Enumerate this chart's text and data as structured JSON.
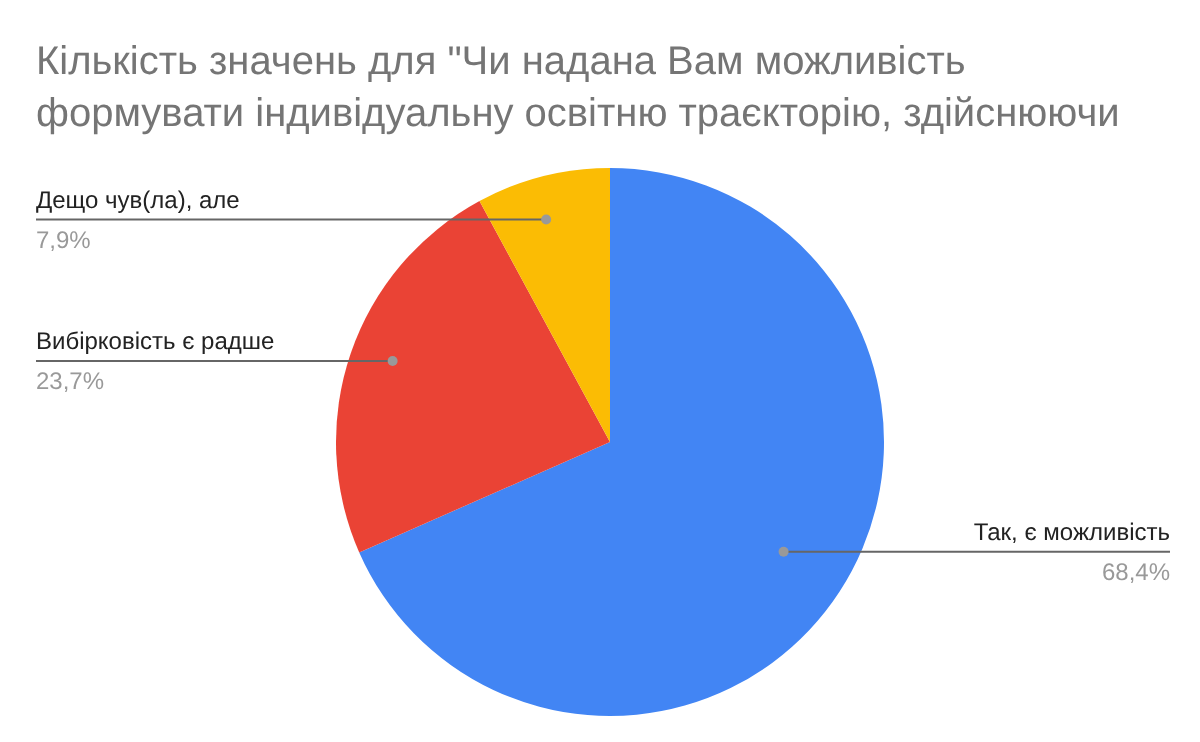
{
  "chart_data": {
    "type": "pie",
    "title": "Кількість значень для \"Чи надана Вам можливість формувати індивідуальну освітню траєкторію, здійснюючи",
    "categories": [
      "Так, є можливість",
      "Вибірковість є радше",
      "Дещо чув(ла), але"
    ],
    "values": [
      68.4,
      23.7,
      7.9
    ],
    "value_labels": [
      "68,4%",
      "23,7%",
      "7,9%"
    ],
    "colors": [
      "#4285f4",
      "#ea4335",
      "#fbbc04"
    ]
  }
}
